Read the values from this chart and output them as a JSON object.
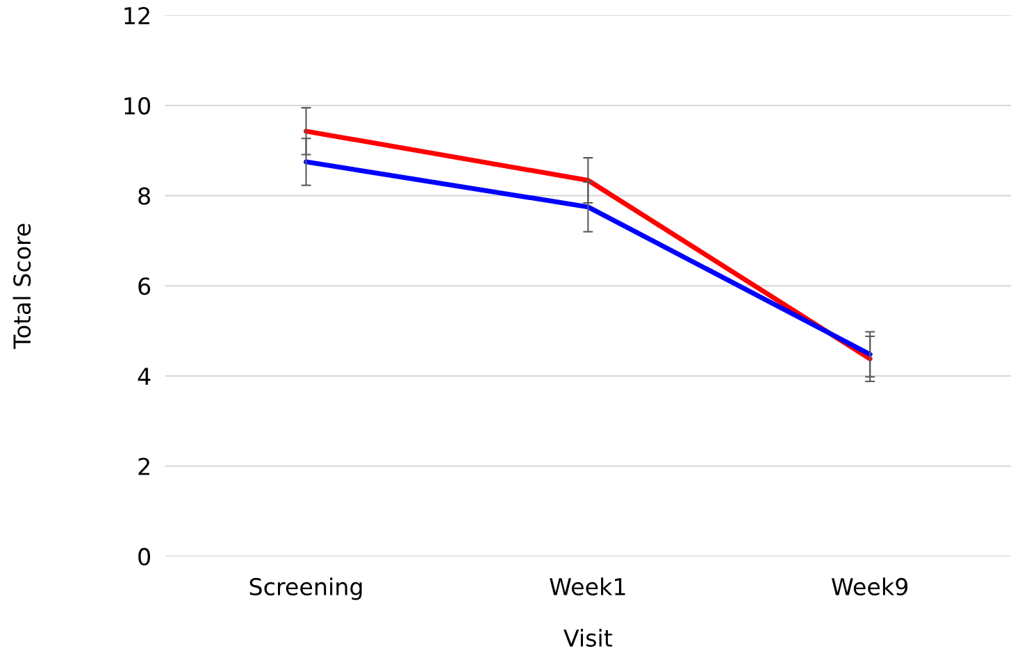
{
  "chart_data": {
    "type": "line",
    "xlabel": "Visit",
    "ylabel": "Total Score",
    "categories": [
      "Screening",
      "Week1",
      "Week9"
    ],
    "series": [
      {
        "color": "#ff0000",
        "values": [
          9.43,
          8.34,
          4.38
        ],
        "errors": [
          0.52,
          0.5,
          0.5
        ]
      },
      {
        "color": "#0000ff",
        "values": [
          8.75,
          7.75,
          4.48
        ],
        "errors": [
          0.52,
          0.55,
          0.5
        ]
      }
    ],
    "ylim": [
      0,
      12
    ],
    "yticks": [
      0,
      2,
      4,
      6,
      8,
      10,
      12
    ],
    "grid": "y",
    "marker": "none",
    "line_style": "solid"
  }
}
